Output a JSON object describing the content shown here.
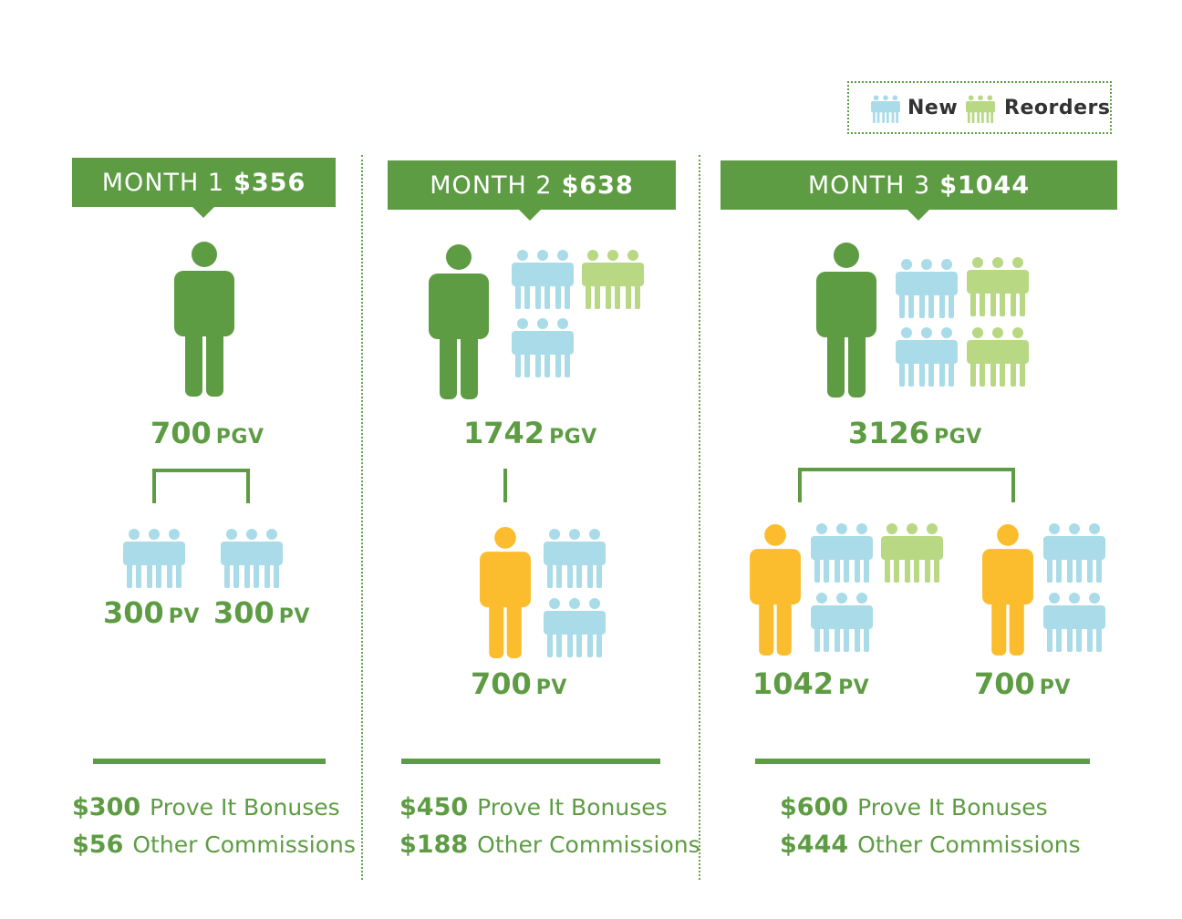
{
  "colors": {
    "brand_green": "#5e9c44",
    "new_blue": "#a9dbe8",
    "reorder_green": "#b8d884",
    "downline_yellow": "#fbbd2d"
  },
  "legend": {
    "new_label": "New",
    "reorders_label": "Reorders"
  },
  "months": [
    {
      "label": "MONTH 1",
      "amount": "$356",
      "pgv_value": "700",
      "pgv_unit": "PGV",
      "downlines": [
        {
          "value": "300",
          "unit": "PV"
        },
        {
          "value": "300",
          "unit": "PV"
        }
      ],
      "bonus_amount": "$300",
      "bonus_label": "Prove It Bonuses",
      "commission_amount": "$56",
      "commission_label": "Other Commissions"
    },
    {
      "label": "MONTH 2",
      "amount": "$638",
      "pgv_value": "1742",
      "pgv_unit": "PGV",
      "downlines": [
        {
          "value": "700",
          "unit": "PV"
        }
      ],
      "bonus_amount": "$450",
      "bonus_label": "Prove It Bonuses",
      "commission_amount": "$188",
      "commission_label": "Other Commissions"
    },
    {
      "label": "MONTH 3",
      "amount": "$1044",
      "pgv_value": "3126",
      "pgv_unit": "PGV",
      "downlines": [
        {
          "value": "1042",
          "unit": "PV"
        },
        {
          "value": "700",
          "unit": "PV"
        }
      ],
      "bonus_amount": "$600",
      "bonus_label": "Prove It Bonuses",
      "commission_amount": "$444",
      "commission_label": "Other Commissions"
    }
  ]
}
